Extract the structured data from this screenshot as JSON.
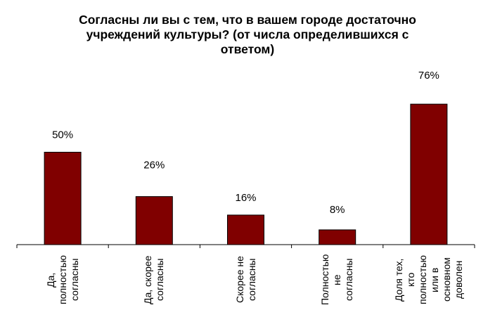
{
  "chart_data": {
    "type": "bar",
    "title": "Согласны ли вы с тем, что в вашем городе достаточно учреждений культуры? (от числа определившихся с ответом)",
    "title_lines": [
      "Согласны ли вы с тем, что в вашем городе достаточно",
      "учреждений культуры? (от числа определившихся с",
      "ответом)"
    ],
    "categories": [
      "Да, полностью согласны",
      "Да, скорее согласны",
      "Скорее не согласны",
      "Полностью не согласны",
      "Доля тех, кто полностью или в основном доволен"
    ],
    "category_lines": [
      [
        "Да,",
        "полностью",
        "согласны"
      ],
      [
        "Да, скорее",
        "согласны"
      ],
      [
        "Скорее не",
        "согласны"
      ],
      [
        "Полностью",
        "не",
        "согласны"
      ],
      [
        "Доля тех,",
        "кто",
        "полностью",
        "или в",
        "основном",
        "доволен"
      ]
    ],
    "values": [
      50,
      26,
      16,
      8,
      76
    ],
    "data_labels": [
      "50%",
      "26%",
      "16%",
      "8%",
      "76%"
    ],
    "ylim": [
      0,
      100
    ],
    "xlabel": "",
    "ylabel": "",
    "bar_color": "#800000",
    "axis_color": "#000000",
    "grid": false,
    "legend": "none"
  }
}
